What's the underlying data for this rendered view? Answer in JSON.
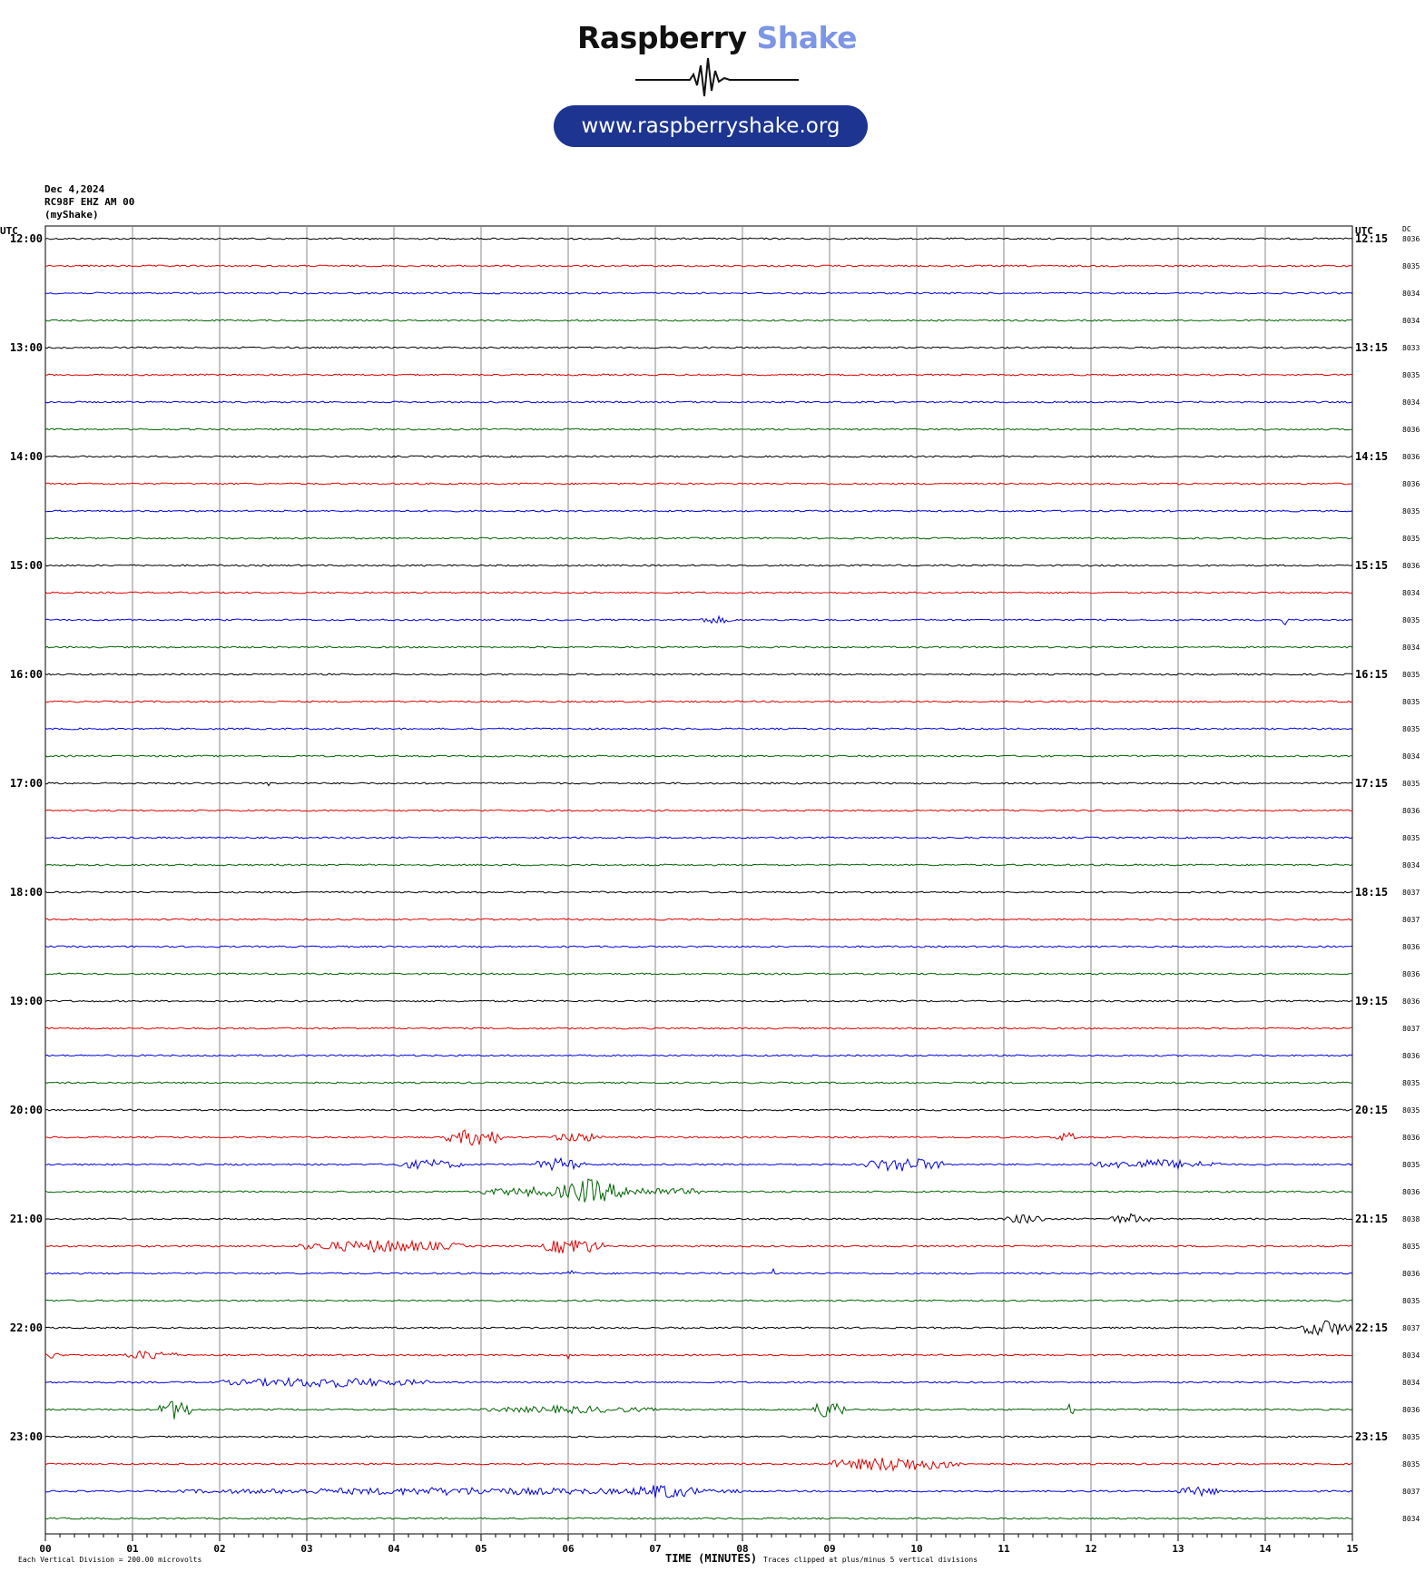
{
  "logo": {
    "brand_word": "Raspberry",
    "brand_accent": "Shake",
    "url": "www.raspberryshake.org",
    "pill_color": "#1d3591",
    "accent_color": "#7d95e6"
  },
  "header": {
    "date": "Dec 4,2024",
    "station": "RC98F EHZ AM 00",
    "source": "(myShake)"
  },
  "chart_data": {
    "type": "line",
    "subtype": "helicorder",
    "left_axis_title": "UTC",
    "right_axis_title": "UTC",
    "dc_title": "DC",
    "xlabel": "TIME (MINUTES)",
    "x_ticks": [
      "00",
      "01",
      "02",
      "03",
      "04",
      "05",
      "06",
      "07",
      "08",
      "09",
      "10",
      "11",
      "12",
      "13",
      "14",
      "15"
    ],
    "xlim": [
      0,
      15
    ],
    "minor_ticks_per_minute": 6,
    "row_colors": [
      "#000000",
      "#e00000",
      "#0000e0",
      "#006400"
    ],
    "rows": [
      {
        "left": "12:00",
        "right": "12:15",
        "dc": "8036"
      },
      {
        "left": "",
        "right": "",
        "dc": "8035"
      },
      {
        "left": "",
        "right": "",
        "dc": "8034"
      },
      {
        "left": "",
        "right": "",
        "dc": "8034"
      },
      {
        "left": "13:00",
        "right": "13:15",
        "dc": "8033"
      },
      {
        "left": "",
        "right": "",
        "dc": "8035"
      },
      {
        "left": "",
        "right": "",
        "dc": "8034"
      },
      {
        "left": "",
        "right": "",
        "dc": "8036"
      },
      {
        "left": "14:00",
        "right": "14:15",
        "dc": "8036"
      },
      {
        "left": "",
        "right": "",
        "dc": "8036"
      },
      {
        "left": "",
        "right": "",
        "dc": "8035"
      },
      {
        "left": "",
        "right": "",
        "dc": "8035"
      },
      {
        "left": "15:00",
        "right": "15:15",
        "dc": "8036"
      },
      {
        "left": "",
        "right": "",
        "dc": "8034"
      },
      {
        "left": "",
        "right": "",
        "dc": "8035"
      },
      {
        "left": "",
        "right": "",
        "dc": "8034"
      },
      {
        "left": "16:00",
        "right": "16:15",
        "dc": "8035"
      },
      {
        "left": "",
        "right": "",
        "dc": "8035"
      },
      {
        "left": "",
        "right": "",
        "dc": "8035"
      },
      {
        "left": "",
        "right": "",
        "dc": "8034"
      },
      {
        "left": "17:00",
        "right": "17:15",
        "dc": "8035"
      },
      {
        "left": "",
        "right": "",
        "dc": "8036"
      },
      {
        "left": "",
        "right": "",
        "dc": "8035"
      },
      {
        "left": "",
        "right": "",
        "dc": "8034"
      },
      {
        "left": "18:00",
        "right": "18:15",
        "dc": "8037"
      },
      {
        "left": "",
        "right": "",
        "dc": "8037"
      },
      {
        "left": "",
        "right": "",
        "dc": "8036"
      },
      {
        "left": "",
        "right": "",
        "dc": "8036"
      },
      {
        "left": "19:00",
        "right": "19:15",
        "dc": "8036"
      },
      {
        "left": "",
        "right": "",
        "dc": "8037"
      },
      {
        "left": "",
        "right": "",
        "dc": "8036"
      },
      {
        "left": "",
        "right": "",
        "dc": "8035"
      },
      {
        "left": "20:00",
        "right": "20:15",
        "dc": "8035"
      },
      {
        "left": "",
        "right": "",
        "dc": "8036"
      },
      {
        "left": "",
        "right": "",
        "dc": "8035"
      },
      {
        "left": "",
        "right": "",
        "dc": "8036"
      },
      {
        "left": "21:00",
        "right": "21:15",
        "dc": "8038"
      },
      {
        "left": "",
        "right": "",
        "dc": "8035"
      },
      {
        "left": "",
        "right": "",
        "dc": "8036"
      },
      {
        "left": "",
        "right": "",
        "dc": "8035"
      },
      {
        "left": "22:00",
        "right": "22:15",
        "dc": "8037"
      },
      {
        "left": "",
        "right": "",
        "dc": "8034"
      },
      {
        "left": "",
        "right": "",
        "dc": "8034"
      },
      {
        "left": "",
        "right": "",
        "dc": "8036"
      },
      {
        "left": "23:00",
        "right": "23:15",
        "dc": "8035"
      },
      {
        "left": "",
        "right": "",
        "dc": "8035"
      },
      {
        "left": "",
        "right": "",
        "dc": "8037"
      },
      {
        "left": "",
        "right": "",
        "dc": "8034"
      }
    ],
    "events": [
      {
        "row": 14,
        "start": 7.5,
        "end": 7.9,
        "amp": 0.15
      },
      {
        "row": 14,
        "start": 14.2,
        "end": 14.25,
        "amp": 0.2
      },
      {
        "row": 20,
        "start": 2.55,
        "end": 2.6,
        "amp": 0.3
      },
      {
        "row": 33,
        "start": 4.6,
        "end": 5.3,
        "amp": 0.35
      },
      {
        "row": 33,
        "start": 5.8,
        "end": 6.4,
        "amp": 0.2
      },
      {
        "row": 33,
        "start": 11.6,
        "end": 11.85,
        "amp": 0.2
      },
      {
        "row": 34,
        "start": 4.0,
        "end": 4.8,
        "amp": 0.2
      },
      {
        "row": 34,
        "start": 5.6,
        "end": 6.2,
        "amp": 0.25
      },
      {
        "row": 34,
        "start": 9.4,
        "end": 10.3,
        "amp": 0.3
      },
      {
        "row": 34,
        "start": 12.0,
        "end": 13.5,
        "amp": 0.2
      },
      {
        "row": 35,
        "start": 5.0,
        "end": 7.5,
        "amp": 0.25
      },
      {
        "row": 35,
        "start": 5.9,
        "end": 6.6,
        "amp": 0.5
      },
      {
        "row": 36,
        "start": 11.0,
        "end": 11.5,
        "amp": 0.2
      },
      {
        "row": 36,
        "start": 12.2,
        "end": 12.7,
        "amp": 0.2
      },
      {
        "row": 37,
        "start": 2.9,
        "end": 4.8,
        "amp": 0.25
      },
      {
        "row": 37,
        "start": 5.7,
        "end": 6.4,
        "amp": 0.35
      },
      {
        "row": 38,
        "start": 6.0,
        "end": 6.1,
        "amp": 0.2
      },
      {
        "row": 38,
        "start": 8.35,
        "end": 8.37,
        "amp": 0.6
      },
      {
        "row": 40,
        "start": 14.4,
        "end": 15.0,
        "amp": 0.35
      },
      {
        "row": 41,
        "start": 0.0,
        "end": 0.15,
        "amp": 0.15
      },
      {
        "row": 41,
        "start": 0.9,
        "end": 1.5,
        "amp": 0.2
      },
      {
        "row": 41,
        "start": 6.0,
        "end": 6.02,
        "amp": 0.4
      },
      {
        "row": 42,
        "start": 2.0,
        "end": 4.4,
        "amp": 0.2
      },
      {
        "row": 43,
        "start": 1.3,
        "end": 1.7,
        "amp": 0.4
      },
      {
        "row": 43,
        "start": 5.0,
        "end": 7.0,
        "amp": 0.15
      },
      {
        "row": 43,
        "start": 8.8,
        "end": 9.2,
        "amp": 0.4
      },
      {
        "row": 43,
        "start": 11.75,
        "end": 11.8,
        "amp": 0.5
      },
      {
        "row": 45,
        "start": 9.0,
        "end": 10.5,
        "amp": 0.3
      },
      {
        "row": 46,
        "start": 1.5,
        "end": 8.0,
        "amp": 0.15
      },
      {
        "row": 46,
        "start": 6.7,
        "end": 7.5,
        "amp": 0.3
      },
      {
        "row": 46,
        "start": 13.0,
        "end": 13.5,
        "amp": 0.2
      }
    ],
    "footer": {
      "division_note": "Each Vertical Division =  200.00 microvolts",
      "clip_note": "Traces clipped at plus/minus 5 vertical divisions"
    },
    "grid": true
  }
}
